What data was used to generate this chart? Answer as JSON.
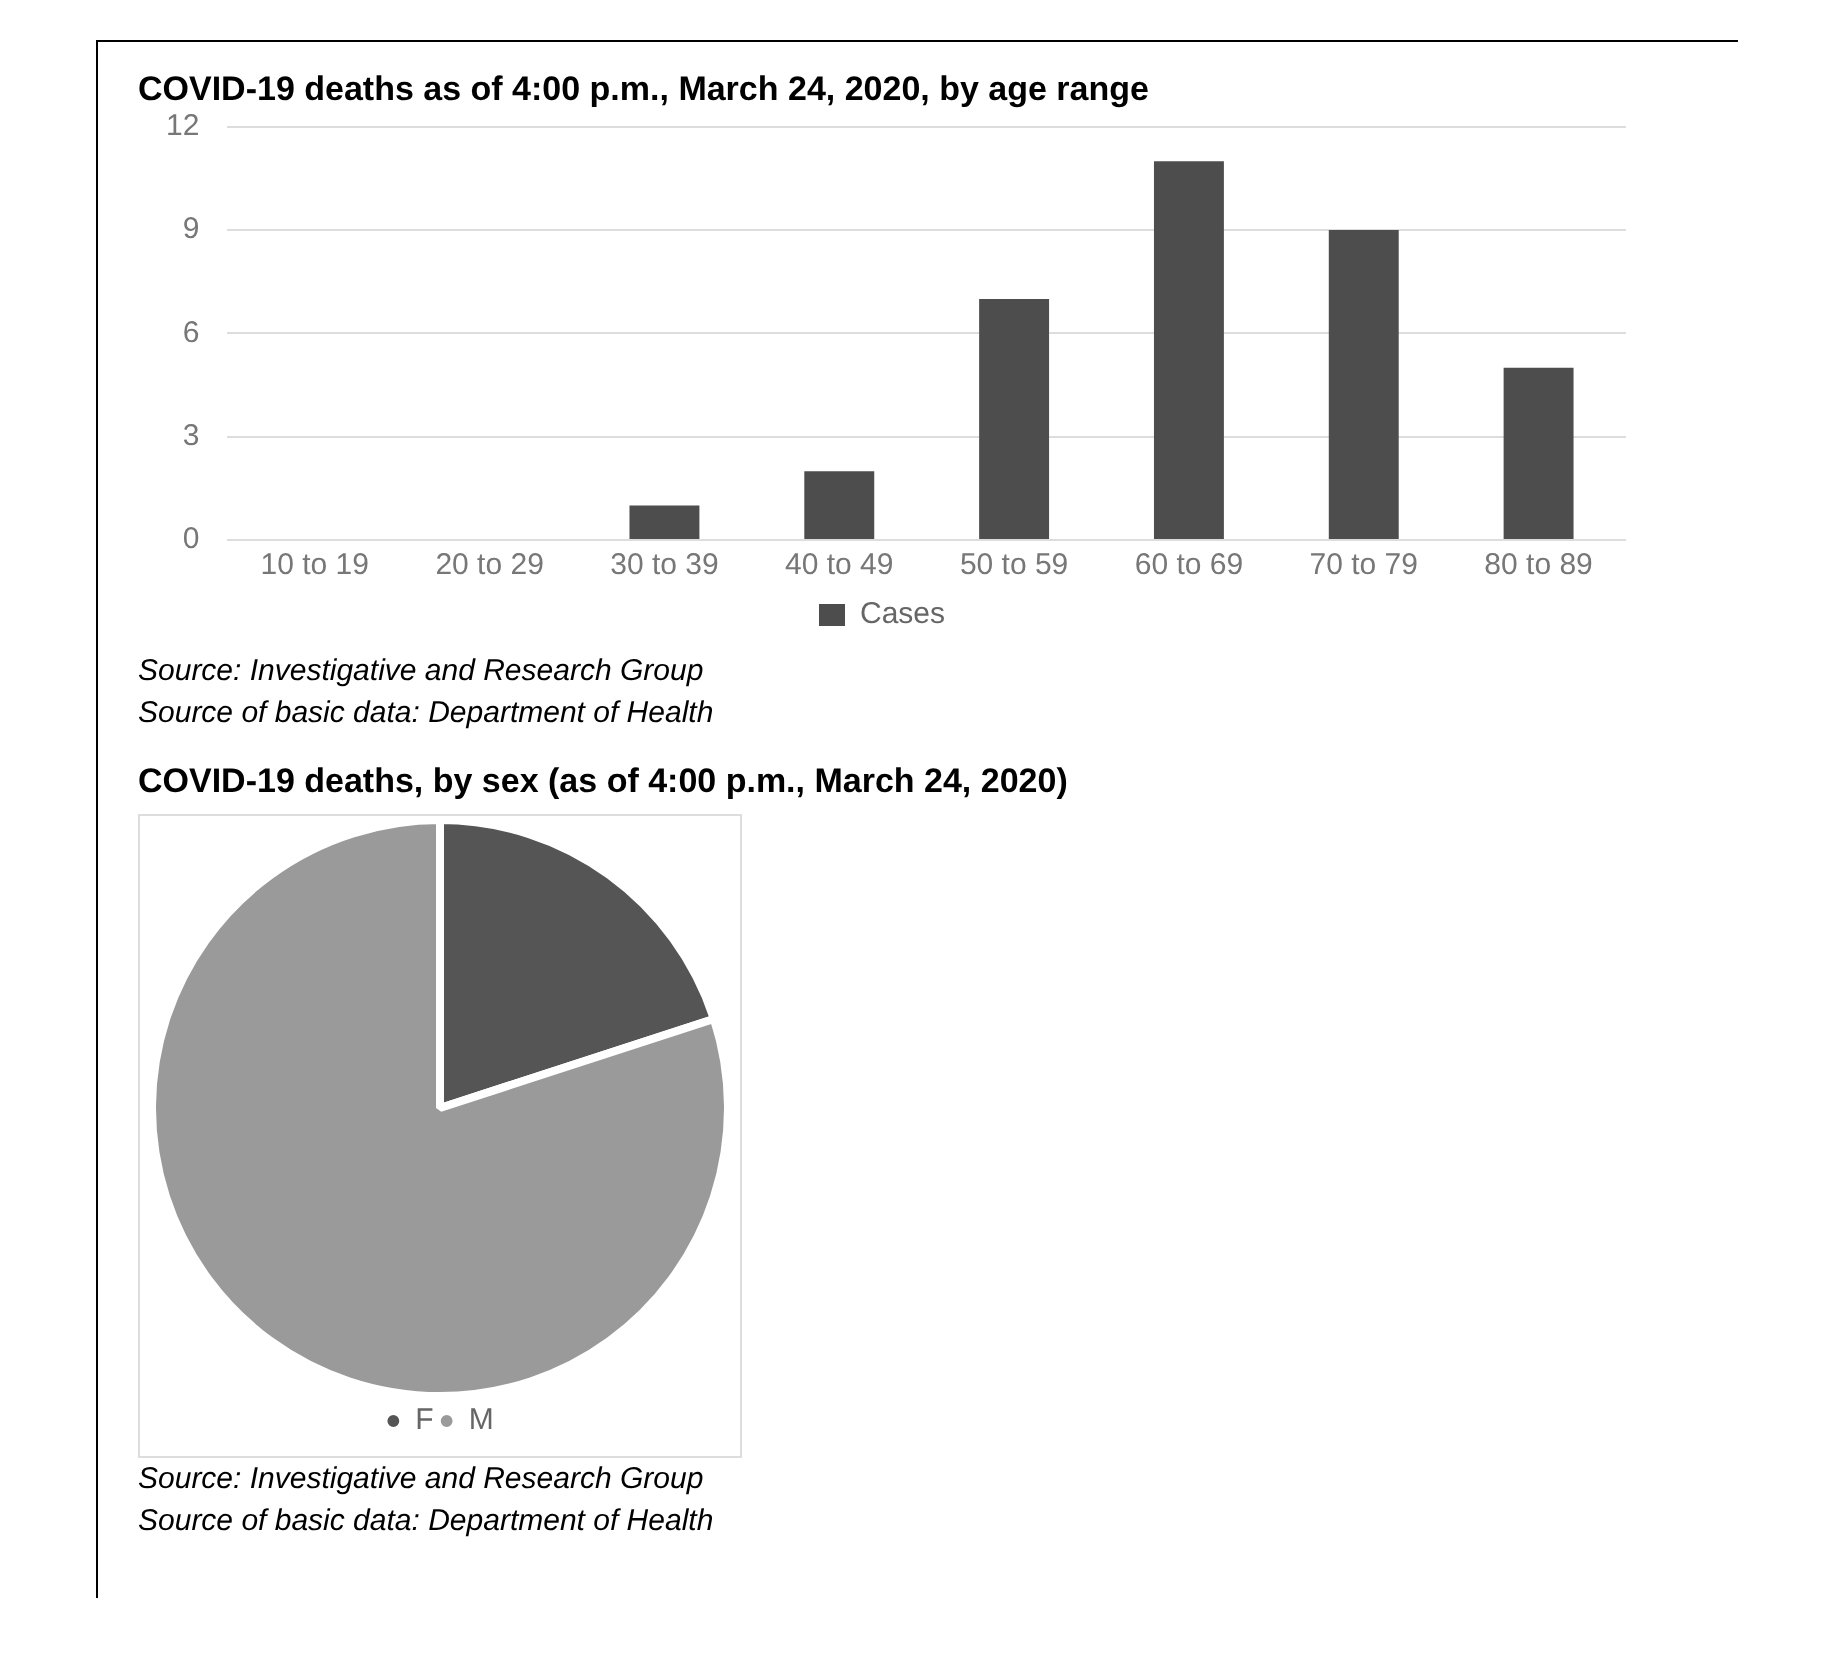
{
  "chart_data": [
    {
      "type": "bar",
      "title": "COVID-19 deaths as of 4:00 p.m., March 24, 2020, by age range",
      "categories": [
        "10 to 19",
        "20 to 29",
        "30 to 39",
        "40 to 49",
        "50 to 59",
        "60 to 69",
        "70 to 79",
        "80 to 89"
      ],
      "series": [
        {
          "name": "Cases",
          "color": "#4d4d4d",
          "values": [
            0,
            0,
            1,
            2,
            7,
            11,
            9,
            5
          ]
        }
      ],
      "ylim": [
        0,
        12
      ],
      "yticks": [
        0,
        3,
        6,
        9,
        12
      ],
      "grid": "y",
      "legend": "bottom",
      "annotations": [
        "Source: Investigative and Research Group",
        "Source of basic data: Department of Health"
      ]
    },
    {
      "type": "pie",
      "title": "COVID-19 deaths, by sex (as of 4:00 p.m., March 24, 2020)",
      "categories": [
        "F",
        "M"
      ],
      "values": [
        20,
        80
      ],
      "colors": [
        "#555555",
        "#9a9a9a"
      ],
      "legend": "bottom",
      "annotations": [
        "Source: Investigative and Research Group",
        "Source of basic data: Department of Health"
      ]
    }
  ]
}
